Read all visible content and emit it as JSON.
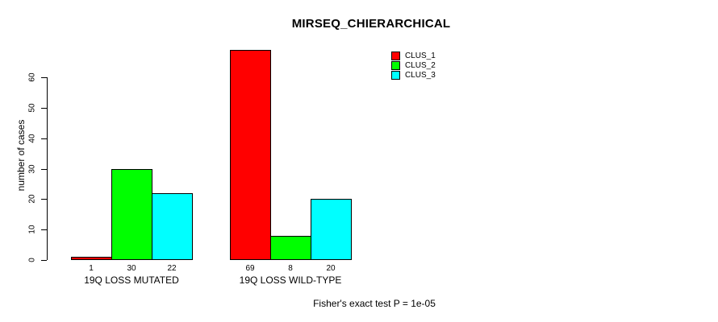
{
  "chart": {
    "title": "MIRSEQ_CHIERARCHICAL",
    "ylabel": "number of cases",
    "caption": "Fisher's exact test P = 1e-05"
  },
  "chart_data": {
    "type": "bar",
    "grouped": true,
    "title": "MIRSEQ_CHIERARCHICAL",
    "xlabel": "",
    "ylabel": "number of cases",
    "categories": [
      "19Q LOSS MUTATED",
      "19Q LOSS WILD-TYPE"
    ],
    "series": [
      {
        "name": "CLUS_1",
        "color": "#FF0000",
        "values": [
          1,
          69
        ]
      },
      {
        "name": "CLUS_2",
        "color": "#00FF00",
        "values": [
          30,
          8
        ]
      },
      {
        "name": "CLUS_3",
        "color": "#00FFFF",
        "values": [
          22,
          20
        ]
      }
    ],
    "bar_value_labels": [
      [
        "1",
        "30",
        "22"
      ],
      [
        "69",
        "8",
        "20"
      ]
    ],
    "yticks": [
      0,
      10,
      20,
      30,
      40,
      50,
      60
    ],
    "ylim": [
      0,
      69
    ],
    "grid": false,
    "legend_position": "top-right",
    "annotation": "Fisher's exact test P = 1e-05",
    "axis_color": "#000000",
    "bar_border_color": "#000000"
  }
}
